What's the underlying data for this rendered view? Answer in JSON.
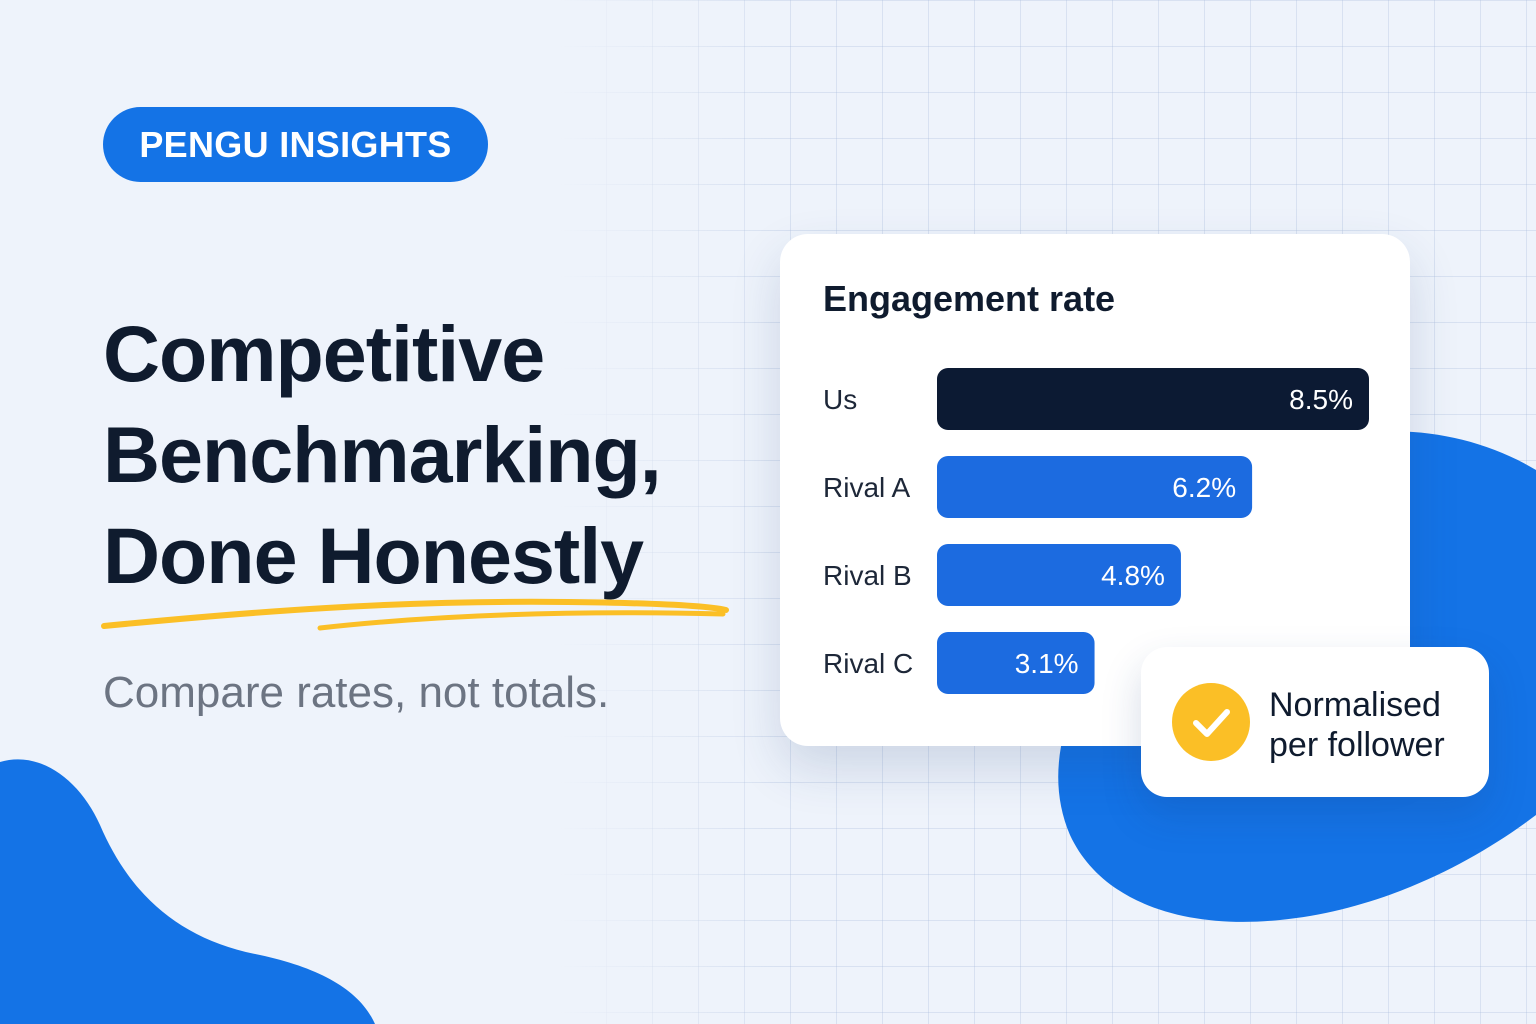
{
  "brand": {
    "badge": "PENGU INSIGHTS"
  },
  "headline": {
    "line1": "Competitive",
    "line2": "Benchmarking,",
    "line3": "Done Honestly"
  },
  "subtitle": "Compare rates, not totals.",
  "note": {
    "line1": "Normalised",
    "line2": "per follower",
    "icon": "check-icon"
  },
  "colors": {
    "accent": "#1473e6",
    "bar_primary": "#0c1a33",
    "bar_secondary": "#1c6be0",
    "highlight": "#fbbf26"
  },
  "chart_data": {
    "type": "bar",
    "orientation": "horizontal",
    "title": "Engagement rate",
    "categories": [
      "Us",
      "Rival A",
      "Rival B",
      "Rival C"
    ],
    "values": [
      8.5,
      6.2,
      4.8,
      3.1
    ],
    "value_labels": [
      "8.5%",
      "6.2%",
      "4.8%",
      "3.1%"
    ],
    "unit": "%",
    "xlim": [
      0,
      8.5
    ],
    "grid": false,
    "legend": "none"
  }
}
